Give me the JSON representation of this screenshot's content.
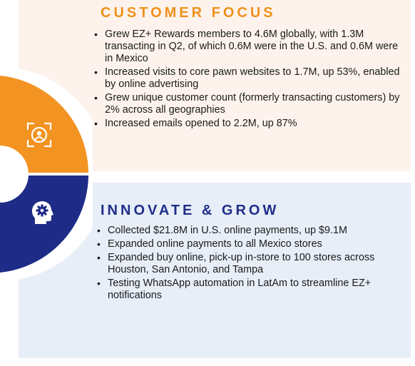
{
  "customer_focus": {
    "heading": "CUSTOMER FOCUS",
    "icon": "target-focus-icon",
    "accent_color": "#f0901c",
    "bullets": [
      "Grew EZ+ Rewards members to 4.6M globally, with 1.3M transacting in Q2, of which 0.6M were in the U.S. and 0.6M were in Mexico",
      "Increased visits to core pawn websites to 1.7M, up 53%, enabled by online advertising",
      "Grew unique customer count (formerly transacting customers) by 2% across all geographies",
      "Increased emails opened to 2.2M, up 87%"
    ]
  },
  "innovate_grow": {
    "heading": "INNOVATE & GROW",
    "icon": "head-gear-icon",
    "accent_color": "#1f2e88",
    "bullets": [
      "Collected $21.8M in U.S. online payments, up $9.1M",
      "Expanded online payments to all Mexico stores",
      "Expanded buy online, pick-up in-store to 100 stores across Houston, San Antonio, and Tampa",
      "Testing WhatsApp automation in LatAm to streamline EZ+ notifications"
    ]
  }
}
